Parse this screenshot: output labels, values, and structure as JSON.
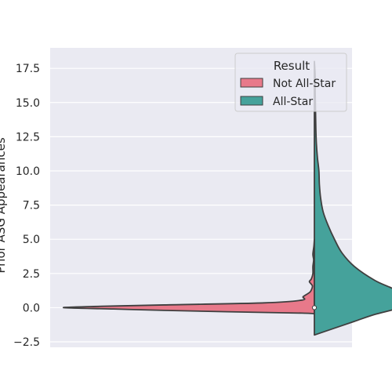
{
  "chart_data": {
    "type": "violin",
    "split": true,
    "title": "",
    "xlabel": "",
    "ylabel": "Prior ASG Appearances",
    "ylim": [
      -2.9,
      19.0
    ],
    "yticks": [
      -2.5,
      0.0,
      2.5,
      5.0,
      7.5,
      10.0,
      12.5,
      15.0,
      17.5
    ],
    "ytick_labels": [
      "−2.5",
      "0.0",
      "2.5",
      "5.0",
      "7.5",
      "10.0",
      "12.5",
      "15.0",
      "17.5"
    ],
    "grid": true,
    "legend": {
      "title": "Result",
      "placement": "top-right",
      "entries": [
        {
          "name": "Not All-Star",
          "color": "#e8798a"
        },
        {
          "name": "All-Star",
          "color": "#45a29b"
        }
      ]
    },
    "series": [
      {
        "name": "Not All-Star",
        "side": "left",
        "color": "#e8798a",
        "density_profile": [
          {
            "y": -0.45,
            "width": 0.0
          },
          {
            "y": -0.4,
            "width": 0.05
          },
          {
            "y": -0.3,
            "width": 0.35
          },
          {
            "y": -0.2,
            "width": 0.6
          },
          {
            "y": -0.1,
            "width": 0.8
          },
          {
            "y": 0.0,
            "width": 1.0
          },
          {
            "y": 0.1,
            "width": 0.85
          },
          {
            "y": 0.2,
            "width": 0.6
          },
          {
            "y": 0.35,
            "width": 0.2
          },
          {
            "y": 0.55,
            "width": 0.05
          },
          {
            "y": 0.8,
            "width": 0.045
          },
          {
            "y": 1.1,
            "width": 0.02
          },
          {
            "y": 1.3,
            "width": 0.012
          },
          {
            "y": 1.6,
            "width": 0.008
          },
          {
            "y": 1.9,
            "width": 0.02
          },
          {
            "y": 2.1,
            "width": 0.012
          },
          {
            "y": 2.5,
            "width": 0.006
          },
          {
            "y": 3.0,
            "width": 0.006
          },
          {
            "y": 3.5,
            "width": 0.003
          },
          {
            "y": 3.9,
            "width": 0.006
          },
          {
            "y": 4.5,
            "width": 0.002
          },
          {
            "y": 5.0,
            "width": 0.0
          }
        ]
      },
      {
        "name": "All-Star",
        "side": "right",
        "color": "#45a29b",
        "density_profile": [
          {
            "y": -2.0,
            "width": 0.0
          },
          {
            "y": -1.5,
            "width": 0.08
          },
          {
            "y": -1.0,
            "width": 0.16
          },
          {
            "y": -0.5,
            "width": 0.24
          },
          {
            "y": 0.0,
            "width": 0.34
          },
          {
            "y": 0.5,
            "width": 0.37
          },
          {
            "y": 1.0,
            "width": 0.36
          },
          {
            "y": 1.5,
            "width": 0.3
          },
          {
            "y": 2.0,
            "width": 0.24
          },
          {
            "y": 3.0,
            "width": 0.16
          },
          {
            "y": 4.0,
            "width": 0.11
          },
          {
            "y": 5.0,
            "width": 0.08
          },
          {
            "y": 6.0,
            "width": 0.055
          },
          {
            "y": 7.0,
            "width": 0.035
          },
          {
            "y": 8.0,
            "width": 0.025
          },
          {
            "y": 9.0,
            "width": 0.02
          },
          {
            "y": 10.0,
            "width": 0.018
          },
          {
            "y": 11.0,
            "width": 0.012
          },
          {
            "y": 12.0,
            "width": 0.008
          },
          {
            "y": 13.0,
            "width": 0.006
          },
          {
            "y": 14.0,
            "width": 0.005
          },
          {
            "y": 15.0,
            "width": 0.004
          },
          {
            "y": 16.0,
            "width": 0.003
          },
          {
            "y": 17.0,
            "width": 0.003
          },
          {
            "y": 18.0,
            "width": 0.0
          }
        ]
      }
    ],
    "median_marker": 0.0
  }
}
